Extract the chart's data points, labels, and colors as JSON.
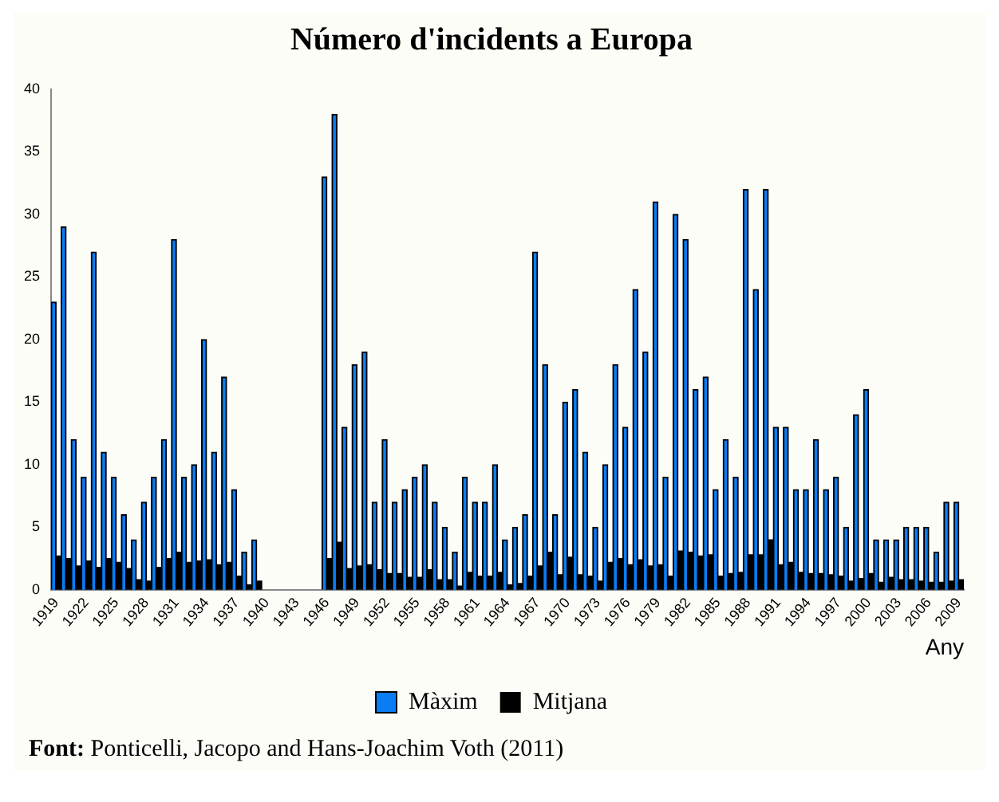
{
  "chart_data": {
    "type": "bar",
    "title": "Número d'incidents a Europa",
    "xlabel": "Any",
    "categories": [
      "1919",
      null,
      null,
      "1922",
      null,
      null,
      "1925",
      null,
      null,
      "1928",
      null,
      null,
      "1931",
      null,
      null,
      "1934",
      null,
      null,
      "1937",
      null,
      null,
      "1940",
      null,
      null,
      "1943",
      null,
      null,
      "1946",
      null,
      null,
      "1949",
      null,
      null,
      "1952",
      null,
      null,
      "1955",
      null,
      null,
      "1958",
      null,
      null,
      "1961",
      null,
      null,
      "1964",
      null,
      null,
      "1967",
      null,
      null,
      "1970",
      null,
      null,
      "1973",
      null,
      null,
      "1976",
      null,
      null,
      "1979",
      null,
      null,
      "1982",
      null,
      null,
      "1985",
      null,
      null,
      "1988",
      null,
      null,
      "1991",
      null,
      null,
      "1994",
      null,
      null,
      "1997",
      null,
      null,
      "2000",
      null,
      null,
      "2003",
      null,
      null,
      "2006",
      null,
      null,
      "2009"
    ],
    "series": [
      {
        "name": "Màxim",
        "color": "#0a7df5",
        "values": [
          23,
          29,
          12,
          9,
          27,
          11,
          9,
          6,
          4,
          7,
          9,
          12,
          28,
          9,
          10,
          20,
          11,
          17,
          8,
          3,
          4,
          null,
          null,
          null,
          null,
          null,
          null,
          33,
          38,
          13,
          18,
          19,
          7,
          12,
          7,
          8,
          9,
          10,
          7,
          5,
          3,
          9,
          7,
          7,
          10,
          4,
          5,
          6,
          27,
          18,
          6,
          15,
          16,
          11,
          5,
          10,
          18,
          13,
          24,
          19,
          31,
          9,
          30,
          28,
          16,
          17,
          8,
          12,
          9,
          32,
          24,
          32,
          13,
          13,
          8,
          8,
          12,
          8,
          9,
          5,
          14,
          16,
          4,
          4,
          4,
          5,
          5,
          5,
          3,
          7,
          7
        ]
      },
      {
        "name": "Mitjana",
        "color": "#000000",
        "values": [
          2.7,
          2.5,
          1.9,
          2.3,
          1.8,
          2.5,
          2.2,
          1.7,
          0.8,
          0.7,
          1.8,
          2.5,
          3.0,
          2.2,
          2.3,
          2.4,
          2.0,
          2.2,
          1.1,
          0.4,
          0.7,
          null,
          null,
          null,
          null,
          null,
          null,
          2.5,
          3.8,
          1.7,
          1.9,
          2.0,
          1.6,
          1.3,
          1.3,
          1.0,
          1.0,
          1.6,
          0.8,
          0.8,
          0.3,
          1.4,
          1.1,
          1.1,
          1.4,
          0.4,
          0.5,
          1.1,
          1.9,
          3.0,
          1.2,
          2.6,
          1.2,
          1.1,
          0.7,
          2.2,
          2.5,
          2.0,
          2.4,
          1.9,
          2.0,
          1.1,
          3.1,
          3.0,
          2.7,
          2.8,
          1.1,
          1.3,
          1.4,
          2.8,
          2.8,
          4.0,
          2.0,
          2.2,
          1.4,
          1.3,
          1.3,
          1.2,
          1.1,
          0.7,
          0.9,
          1.3,
          0.6,
          1.0,
          0.8,
          0.8,
          0.7,
          0.6,
          0.6,
          0.7,
          0.8
        ]
      }
    ],
    "ylim": [
      0,
      40
    ],
    "yticks": [
      0,
      5,
      10,
      15,
      20,
      25,
      30,
      35,
      40
    ],
    "grid": false,
    "legend": "bottom",
    "annotations": [
      "Font: Ponticelli, Jacopo and Hans-Joachim Voth (2011)"
    ]
  }
}
